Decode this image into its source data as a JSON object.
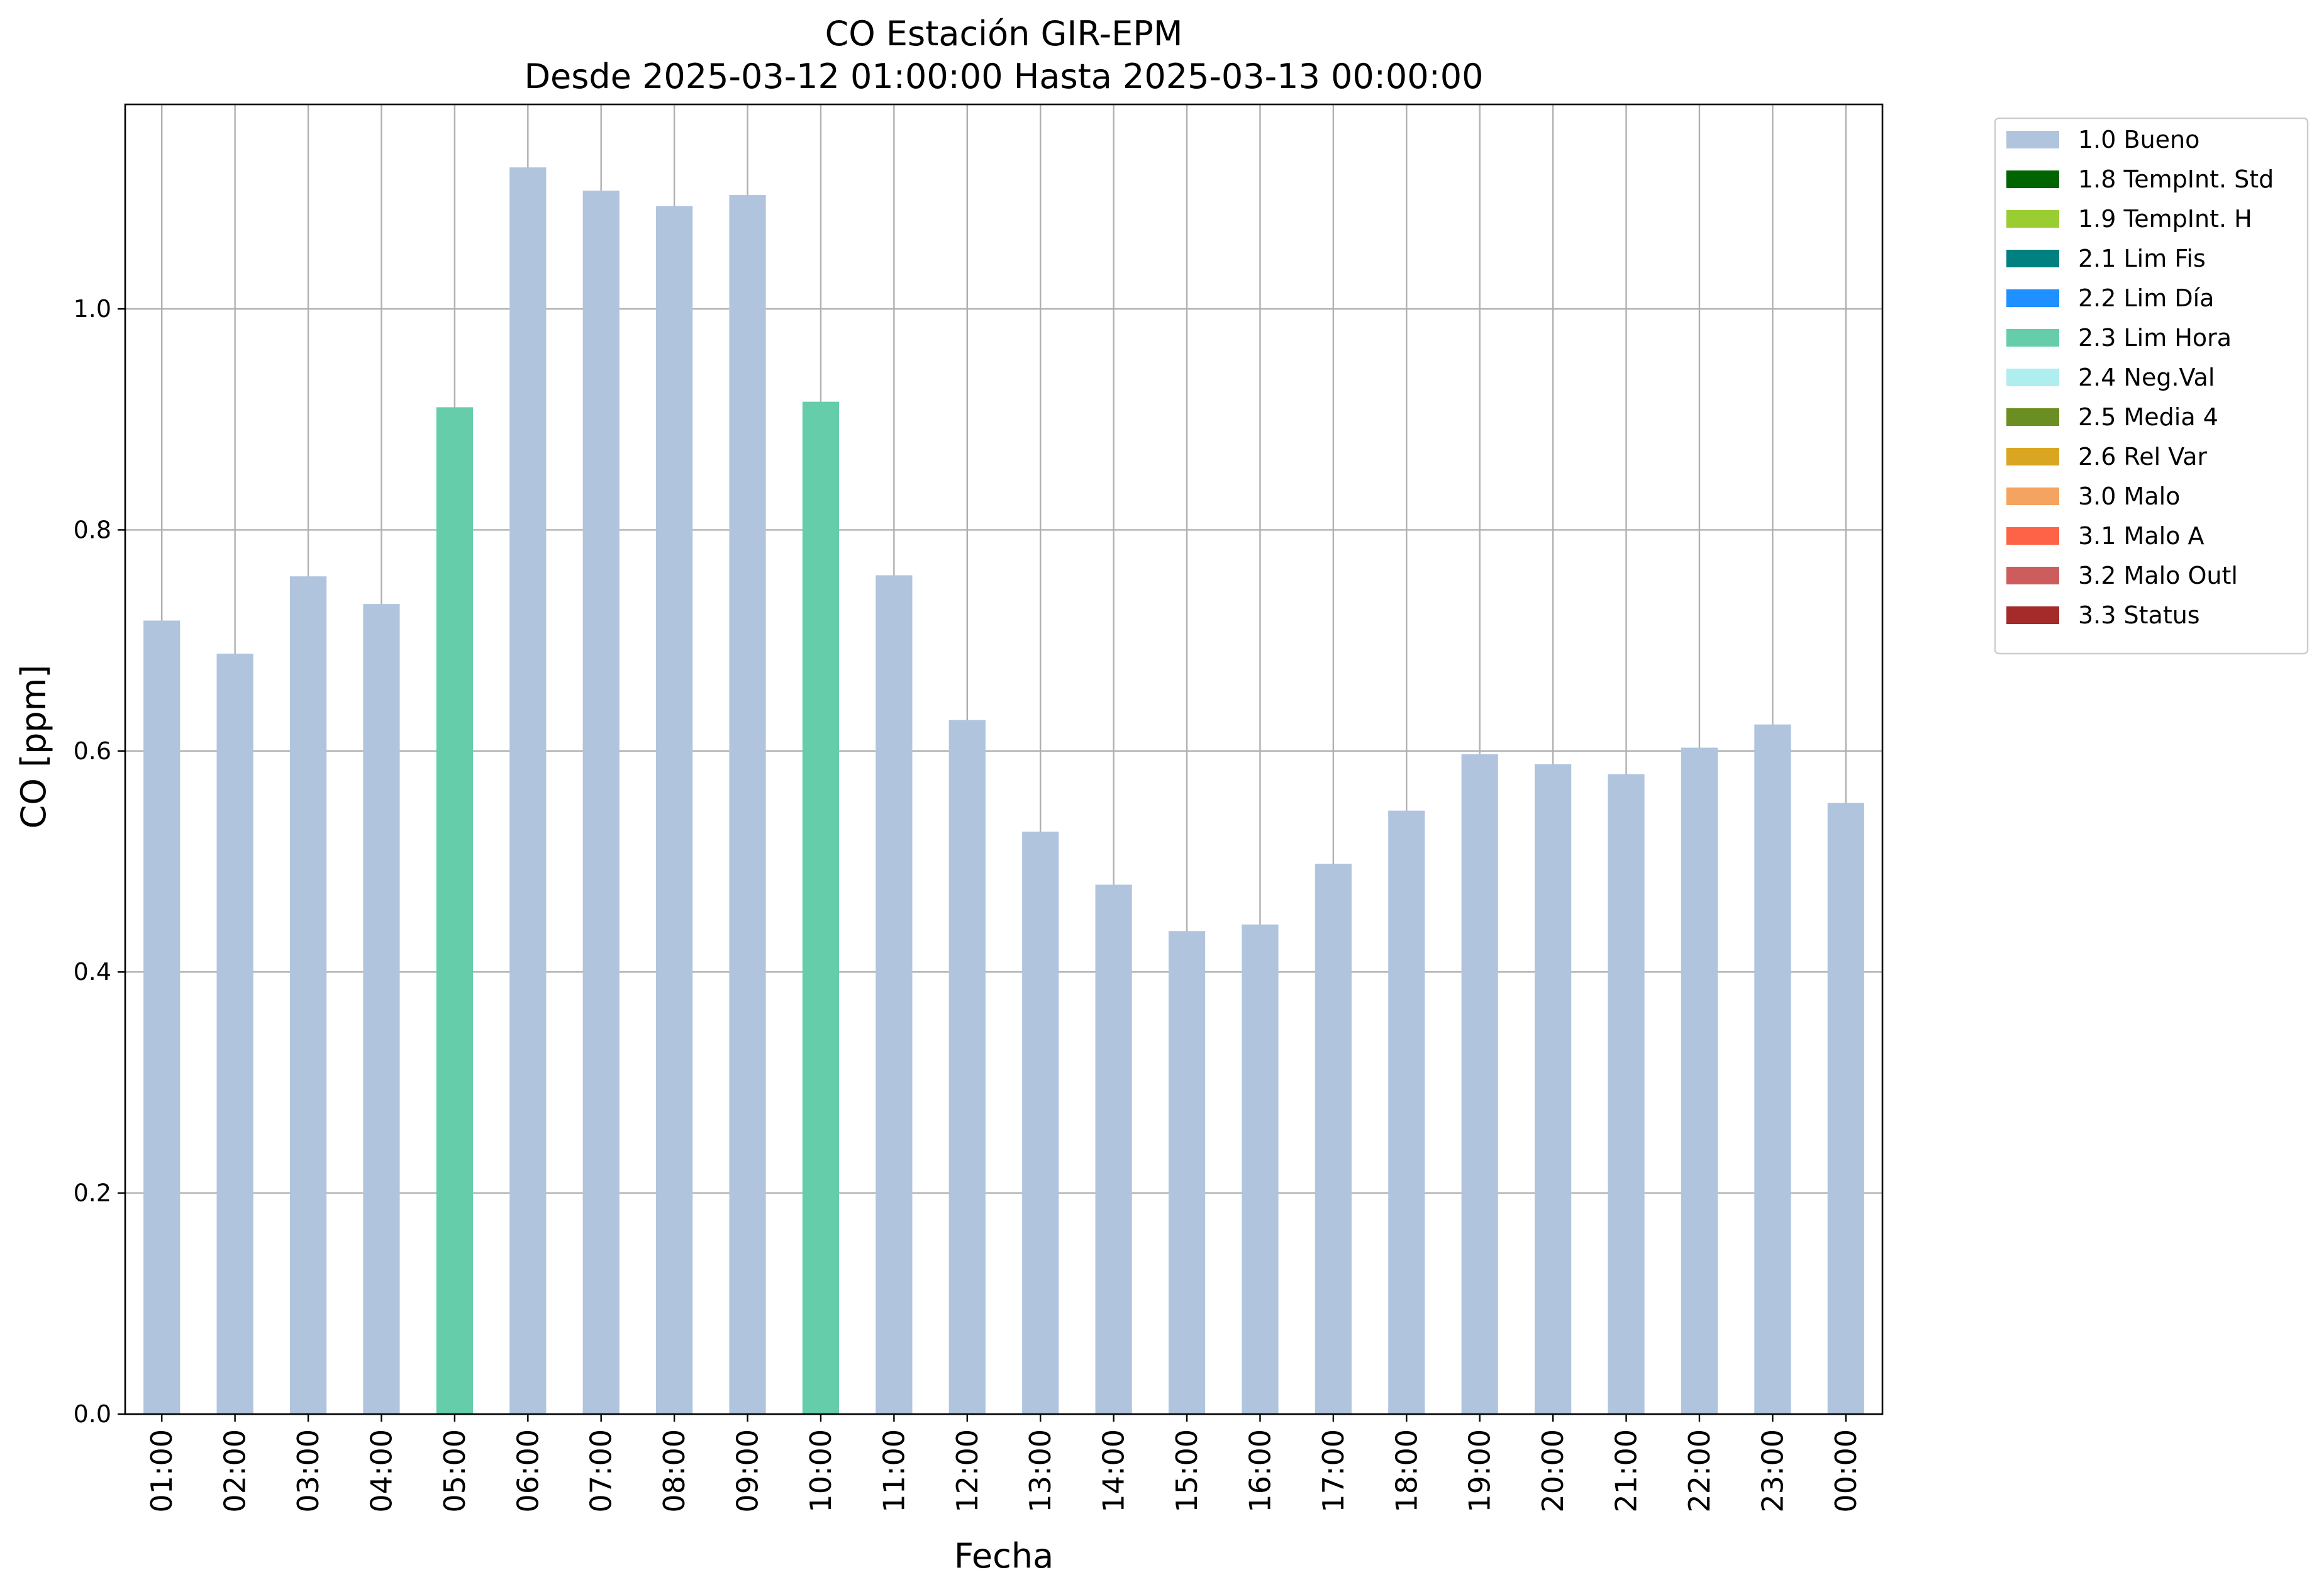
{
  "chart_data": {
    "type": "bar",
    "title": "CO Estación GIR-EPM",
    "subtitle": "Desde 2025-03-12 01:00:00 Hasta 2025-03-13 00:00:00",
    "xlabel": "Fecha",
    "ylabel": "CO [ppm]",
    "ylim": [
      0,
      1.185
    ],
    "yticks": [
      0.0,
      0.2,
      0.4,
      0.6,
      0.8,
      1.0
    ],
    "ytick_labels": [
      "0.0",
      "0.2",
      "0.4",
      "0.6",
      "0.8",
      "1.0"
    ],
    "grid": true,
    "legend_position": "outside-top-right",
    "categories": [
      "01:00",
      "02:00",
      "03:00",
      "04:00",
      "05:00",
      "06:00",
      "07:00",
      "08:00",
      "09:00",
      "10:00",
      "11:00",
      "12:00",
      "13:00",
      "14:00",
      "15:00",
      "16:00",
      "17:00",
      "18:00",
      "19:00",
      "20:00",
      "21:00",
      "22:00",
      "23:00",
      "00:00"
    ],
    "values": [
      0.718,
      0.688,
      0.758,
      0.733,
      0.911,
      1.128,
      1.107,
      1.093,
      1.103,
      0.916,
      0.759,
      0.628,
      0.527,
      0.479,
      0.437,
      0.443,
      0.498,
      0.546,
      0.597,
      0.588,
      0.579,
      0.603,
      0.624,
      0.553
    ],
    "flags": [
      "1.0 Bueno",
      "1.0 Bueno",
      "1.0 Bueno",
      "1.0 Bueno",
      "2.3 Lim Hora",
      "1.0 Bueno",
      "1.0 Bueno",
      "1.0 Bueno",
      "1.0 Bueno",
      "2.3 Lim Hora",
      "1.0 Bueno",
      "1.0 Bueno",
      "1.0 Bueno",
      "1.0 Bueno",
      "1.0 Bueno",
      "1.0 Bueno",
      "1.0 Bueno",
      "1.0 Bueno",
      "1.0 Bueno",
      "1.0 Bueno",
      "1.0 Bueno",
      "1.0 Bueno",
      "1.0 Bueno",
      "1.0 Bueno"
    ],
    "legend": [
      {
        "label": "1.0 Bueno",
        "color": "#b0c4de"
      },
      {
        "label": "1.8 TempInt. Std",
        "color": "#006400"
      },
      {
        "label": "1.9 TempInt. H",
        "color": "#9acd32"
      },
      {
        "label": "2.1 Lim Fis",
        "color": "#008080"
      },
      {
        "label": "2.2 Lim Día",
        "color": "#1e90ff"
      },
      {
        "label": "2.3 Lim Hora",
        "color": "#66cdaa"
      },
      {
        "label": "2.4 Neg.Val",
        "color": "#afeeee"
      },
      {
        "label": "2.5 Media 4",
        "color": "#6b8e23"
      },
      {
        "label": "2.6 Rel Var",
        "color": "#daa520"
      },
      {
        "label": "3.0 Malo",
        "color": "#f4a460"
      },
      {
        "label": "3.1 Malo A",
        "color": "#ff6347"
      },
      {
        "label": "3.2 Malo Outl",
        "color": "#cd5c5c"
      },
      {
        "label": "3.3 Status",
        "color": "#a52a2a"
      }
    ]
  }
}
